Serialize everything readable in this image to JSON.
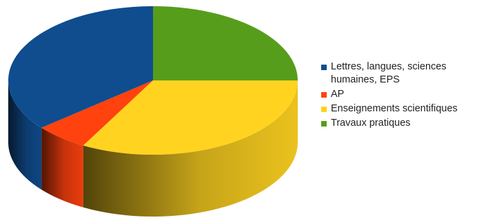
{
  "chart_data": {
    "type": "pie",
    "style": "3d",
    "legend_position": "right",
    "slices": [
      {
        "label": "Lettres, langues, sciences humaines, EPS",
        "value": 36,
        "color": "#0f4d8f"
      },
      {
        "label": "AP",
        "value": 6,
        "color": "#ff420e"
      },
      {
        "label": "Enseignements scientifiques",
        "value": 33,
        "color": "#ffd320"
      },
      {
        "label": "Travaux pratiques",
        "value": 25,
        "color": "#579d1c"
      }
    ]
  }
}
